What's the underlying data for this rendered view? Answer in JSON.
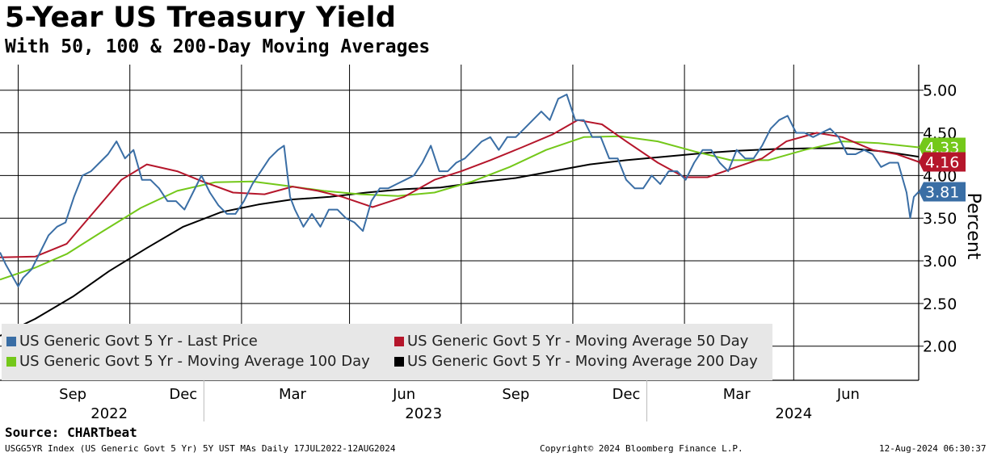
{
  "title": "5-Year US Treasury Yield",
  "subtitle": "With 50, 100 & 200-Day Moving Averages",
  "source": "Source: CHARTbeat",
  "footer": {
    "left": "USGG5YR Index (US Generic Govt 5 Yr) 5Y UST MAs  Daily 17JUL2022-12AUG2024",
    "center": "Copyright© 2024 Bloomberg Finance L.P.",
    "right": "12-Aug-2024 06:30:37"
  },
  "colors": {
    "last_price": "#3a6ea5",
    "ma50": "#b5162b",
    "ma100": "#74c81a",
    "ma200": "#000000"
  },
  "chart_data": {
    "type": "line",
    "ylabel": "Percent",
    "ylim": [
      1.6,
      5.3
    ],
    "y_ticks": [
      "5.00",
      "4.50",
      "4.00",
      "3.50",
      "3.00",
      "2.50",
      "2.00"
    ],
    "y_tick_values": [
      5.0,
      4.5,
      4.0,
      3.5,
      3.0,
      2.5,
      2.0
    ],
    "x_range": [
      "2022-07-17",
      "2024-08-12"
    ],
    "x_month_ticks": [
      {
        "label": "Sep",
        "date": "2022-09-15"
      },
      {
        "label": "Dec",
        "date": "2022-12-15"
      },
      {
        "label": "Mar",
        "date": "2023-03-15"
      },
      {
        "label": "Jun",
        "date": "2023-06-15"
      },
      {
        "label": "Sep",
        "date": "2023-09-15"
      },
      {
        "label": "Dec",
        "date": "2023-12-15"
      },
      {
        "label": "Mar",
        "date": "2024-03-15"
      },
      {
        "label": "Jun",
        "date": "2024-06-15"
      }
    ],
    "x_gridlines": [
      "2022-08-01",
      "2022-11-01",
      "2023-02-01",
      "2023-05-01",
      "2023-08-01",
      "2023-11-01",
      "2024-02-01",
      "2024-05-01"
    ],
    "x_year_labels": [
      {
        "label": "2022",
        "date": "2022-10-15"
      },
      {
        "label": "2023",
        "date": "2023-07-01"
      },
      {
        "label": "2024",
        "date": "2024-05-01"
      }
    ],
    "x_year_boundaries": [
      "2023-01-01",
      "2024-01-01"
    ],
    "end_labels": [
      {
        "series": "ma100",
        "value": 4.33,
        "text": "4.33"
      },
      {
        "series": "ma50",
        "value": 4.16,
        "text": "4.16"
      },
      {
        "series": "last_price",
        "value": 3.81,
        "text": "3.81"
      }
    ],
    "series": [
      {
        "key": "last_price",
        "name": "US Generic Govt 5 Yr - Last Price",
        "points": [
          [
            "2022-07-17",
            3.1
          ],
          [
            "2022-07-22",
            2.95
          ],
          [
            "2022-08-01",
            2.7
          ],
          [
            "2022-08-05",
            2.8
          ],
          [
            "2022-08-12",
            2.9
          ],
          [
            "2022-08-19",
            3.1
          ],
          [
            "2022-08-26",
            3.3
          ],
          [
            "2022-09-02",
            3.4
          ],
          [
            "2022-09-09",
            3.45
          ],
          [
            "2022-09-16",
            3.75
          ],
          [
            "2022-09-23",
            4.0
          ],
          [
            "2022-09-30",
            4.05
          ],
          [
            "2022-10-07",
            4.15
          ],
          [
            "2022-10-14",
            4.25
          ],
          [
            "2022-10-21",
            4.4
          ],
          [
            "2022-10-28",
            4.2
          ],
          [
            "2022-11-04",
            4.3
          ],
          [
            "2022-11-11",
            3.95
          ],
          [
            "2022-11-18",
            3.95
          ],
          [
            "2022-11-25",
            3.85
          ],
          [
            "2022-12-02",
            3.7
          ],
          [
            "2022-12-09",
            3.7
          ],
          [
            "2022-12-16",
            3.6
          ],
          [
            "2022-12-23",
            3.8
          ],
          [
            "2022-12-30",
            4.0
          ],
          [
            "2023-01-06",
            3.8
          ],
          [
            "2023-01-13",
            3.65
          ],
          [
            "2023-01-20",
            3.55
          ],
          [
            "2023-01-27",
            3.55
          ],
          [
            "2023-02-03",
            3.7
          ],
          [
            "2023-02-10",
            3.9
          ],
          [
            "2023-02-17",
            4.05
          ],
          [
            "2023-02-24",
            4.2
          ],
          [
            "2023-03-03",
            4.3
          ],
          [
            "2023-03-08",
            4.35
          ],
          [
            "2023-03-13",
            3.75
          ],
          [
            "2023-03-17",
            3.6
          ],
          [
            "2023-03-24",
            3.4
          ],
          [
            "2023-03-31",
            3.55
          ],
          [
            "2023-04-07",
            3.4
          ],
          [
            "2023-04-14",
            3.6
          ],
          [
            "2023-04-21",
            3.6
          ],
          [
            "2023-04-28",
            3.5
          ],
          [
            "2023-05-05",
            3.45
          ],
          [
            "2023-05-12",
            3.35
          ],
          [
            "2023-05-19",
            3.7
          ],
          [
            "2023-05-26",
            3.85
          ],
          [
            "2023-06-02",
            3.85
          ],
          [
            "2023-06-09",
            3.9
          ],
          [
            "2023-06-16",
            3.95
          ],
          [
            "2023-06-23",
            4.0
          ],
          [
            "2023-06-30",
            4.15
          ],
          [
            "2023-07-07",
            4.35
          ],
          [
            "2023-07-14",
            4.05
          ],
          [
            "2023-07-21",
            4.05
          ],
          [
            "2023-07-28",
            4.15
          ],
          [
            "2023-08-04",
            4.2
          ],
          [
            "2023-08-11",
            4.3
          ],
          [
            "2023-08-18",
            4.4
          ],
          [
            "2023-08-25",
            4.45
          ],
          [
            "2023-09-01",
            4.3
          ],
          [
            "2023-09-08",
            4.45
          ],
          [
            "2023-09-15",
            4.45
          ],
          [
            "2023-09-22",
            4.55
          ],
          [
            "2023-09-29",
            4.65
          ],
          [
            "2023-10-06",
            4.75
          ],
          [
            "2023-10-13",
            4.65
          ],
          [
            "2023-10-20",
            4.9
          ],
          [
            "2023-10-27",
            4.95
          ],
          [
            "2023-11-03",
            4.65
          ],
          [
            "2023-11-10",
            4.65
          ],
          [
            "2023-11-17",
            4.45
          ],
          [
            "2023-11-24",
            4.45
          ],
          [
            "2023-12-01",
            4.2
          ],
          [
            "2023-12-08",
            4.2
          ],
          [
            "2023-12-15",
            3.95
          ],
          [
            "2023-12-22",
            3.85
          ],
          [
            "2023-12-29",
            3.85
          ],
          [
            "2024-01-05",
            4.0
          ],
          [
            "2024-01-12",
            3.9
          ],
          [
            "2024-01-19",
            4.05
          ],
          [
            "2024-01-26",
            4.05
          ],
          [
            "2024-02-02",
            3.95
          ],
          [
            "2024-02-09",
            4.15
          ],
          [
            "2024-02-16",
            4.3
          ],
          [
            "2024-02-23",
            4.3
          ],
          [
            "2024-03-01",
            4.15
          ],
          [
            "2024-03-08",
            4.05
          ],
          [
            "2024-03-15",
            4.3
          ],
          [
            "2024-03-22",
            4.2
          ],
          [
            "2024-03-29",
            4.2
          ],
          [
            "2024-04-05",
            4.35
          ],
          [
            "2024-04-12",
            4.55
          ],
          [
            "2024-04-19",
            4.65
          ],
          [
            "2024-04-26",
            4.7
          ],
          [
            "2024-05-03",
            4.5
          ],
          [
            "2024-05-10",
            4.5
          ],
          [
            "2024-05-17",
            4.45
          ],
          [
            "2024-05-24",
            4.5
          ],
          [
            "2024-05-31",
            4.55
          ],
          [
            "2024-06-07",
            4.45
          ],
          [
            "2024-06-14",
            4.25
          ],
          [
            "2024-06-21",
            4.25
          ],
          [
            "2024-06-28",
            4.3
          ],
          [
            "2024-07-05",
            4.25
          ],
          [
            "2024-07-12",
            4.1
          ],
          [
            "2024-07-19",
            4.15
          ],
          [
            "2024-07-26",
            4.15
          ],
          [
            "2024-08-02",
            3.8
          ],
          [
            "2024-08-05",
            3.5
          ],
          [
            "2024-08-08",
            3.75
          ],
          [
            "2024-08-12",
            3.81
          ]
        ]
      },
      {
        "key": "ma50",
        "name": "US Generic Govt 5 Yr - Moving Average 50 Day",
        "points": [
          [
            "2022-07-17",
            3.04
          ],
          [
            "2022-08-15",
            3.05
          ],
          [
            "2022-09-10",
            3.2
          ],
          [
            "2022-10-01",
            3.55
          ],
          [
            "2022-10-25",
            3.95
          ],
          [
            "2022-11-15",
            4.13
          ],
          [
            "2022-12-10",
            4.05
          ],
          [
            "2022-12-31",
            3.93
          ],
          [
            "2023-01-25",
            3.8
          ],
          [
            "2023-02-20",
            3.78
          ],
          [
            "2023-03-15",
            3.87
          ],
          [
            "2023-04-05",
            3.82
          ],
          [
            "2023-04-25",
            3.75
          ],
          [
            "2023-05-20",
            3.63
          ],
          [
            "2023-06-15",
            3.75
          ],
          [
            "2023-07-10",
            3.95
          ],
          [
            "2023-08-01",
            4.05
          ],
          [
            "2023-08-25",
            4.18
          ],
          [
            "2023-09-20",
            4.33
          ],
          [
            "2023-10-15",
            4.48
          ],
          [
            "2023-11-05",
            4.65
          ],
          [
            "2023-11-25",
            4.6
          ],
          [
            "2023-12-15",
            4.4
          ],
          [
            "2024-01-10",
            4.15
          ],
          [
            "2024-02-01",
            3.98
          ],
          [
            "2024-02-20",
            3.98
          ],
          [
            "2024-03-15",
            4.1
          ],
          [
            "2024-04-05",
            4.2
          ],
          [
            "2024-04-25",
            4.4
          ],
          [
            "2024-05-20",
            4.5
          ],
          [
            "2024-06-10",
            4.45
          ],
          [
            "2024-07-05",
            4.3
          ],
          [
            "2024-07-25",
            4.25
          ],
          [
            "2024-08-12",
            4.16
          ]
        ]
      },
      {
        "key": "ma100",
        "name": "US Generic Govt 5 Yr - Moving Average 100 Day",
        "points": [
          [
            "2022-07-17",
            2.78
          ],
          [
            "2022-08-15",
            2.92
          ],
          [
            "2022-09-10",
            3.08
          ],
          [
            "2022-10-10",
            3.35
          ],
          [
            "2022-11-10",
            3.62
          ],
          [
            "2022-12-10",
            3.82
          ],
          [
            "2023-01-10",
            3.92
          ],
          [
            "2023-02-10",
            3.93
          ],
          [
            "2023-03-10",
            3.88
          ],
          [
            "2023-04-10",
            3.82
          ],
          [
            "2023-05-10",
            3.78
          ],
          [
            "2023-06-10",
            3.76
          ],
          [
            "2023-07-10",
            3.8
          ],
          [
            "2023-08-10",
            3.93
          ],
          [
            "2023-09-10",
            4.1
          ],
          [
            "2023-10-10",
            4.3
          ],
          [
            "2023-11-10",
            4.45
          ],
          [
            "2023-12-10",
            4.46
          ],
          [
            "2024-01-10",
            4.4
          ],
          [
            "2024-02-10",
            4.28
          ],
          [
            "2024-03-10",
            4.18
          ],
          [
            "2024-04-10",
            4.18
          ],
          [
            "2024-05-10",
            4.3
          ],
          [
            "2024-06-10",
            4.4
          ],
          [
            "2024-07-10",
            4.38
          ],
          [
            "2024-08-12",
            4.33
          ]
        ]
      },
      {
        "key": "ma200",
        "name": "US Generic Govt 5 Yr - Moving Average 200 Day",
        "points": [
          [
            "2022-07-17",
            2.12
          ],
          [
            "2022-08-15",
            2.32
          ],
          [
            "2022-09-15",
            2.58
          ],
          [
            "2022-10-15",
            2.88
          ],
          [
            "2022-11-15",
            3.15
          ],
          [
            "2022-12-15",
            3.4
          ],
          [
            "2023-01-15",
            3.57
          ],
          [
            "2023-02-15",
            3.66
          ],
          [
            "2023-03-15",
            3.72
          ],
          [
            "2023-04-15",
            3.75
          ],
          [
            "2023-05-15",
            3.8
          ],
          [
            "2023-06-15",
            3.84
          ],
          [
            "2023-07-15",
            3.86
          ],
          [
            "2023-08-15",
            3.92
          ],
          [
            "2023-09-15",
            3.97
          ],
          [
            "2023-10-15",
            4.05
          ],
          [
            "2023-11-15",
            4.13
          ],
          [
            "2023-12-15",
            4.18
          ],
          [
            "2024-01-15",
            4.22
          ],
          [
            "2024-02-15",
            4.26
          ],
          [
            "2024-03-15",
            4.29
          ],
          [
            "2024-04-15",
            4.31
          ],
          [
            "2024-05-15",
            4.32
          ],
          [
            "2024-06-15",
            4.32
          ],
          [
            "2024-07-15",
            4.28
          ],
          [
            "2024-08-12",
            4.22
          ]
        ]
      }
    ]
  }
}
